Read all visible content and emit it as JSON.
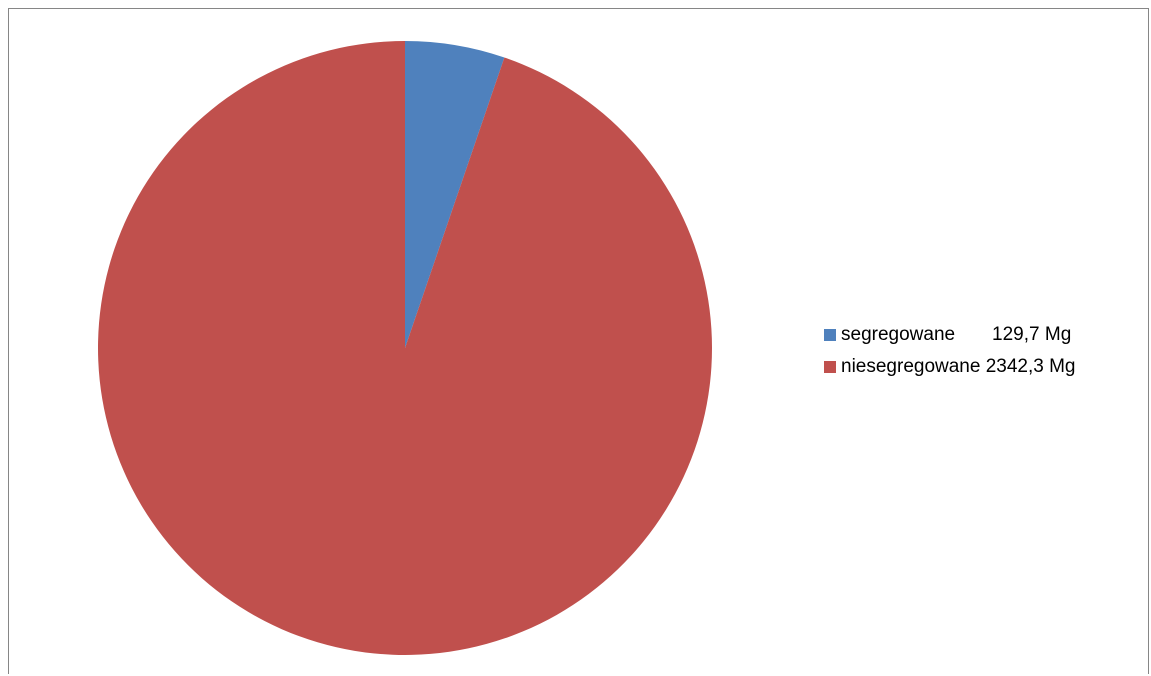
{
  "chart_data": {
    "type": "pie",
    "title": "",
    "series": [
      {
        "name": "",
        "slices": [
          {
            "label": "segregowane",
            "value": 129.7,
            "unit": "Mg",
            "color": "#4F81BD",
            "legend_text": "segregowane       129,7 Mg"
          },
          {
            "label": "niesegregowane",
            "value": 2342.3,
            "unit": "Mg",
            "color": "#C0504D",
            "legend_text": "niesegregowane 2342,3 Mg"
          }
        ]
      }
    ],
    "start_angle": "12 o'clock",
    "direction": "clockwise",
    "legend_position": "right"
  }
}
